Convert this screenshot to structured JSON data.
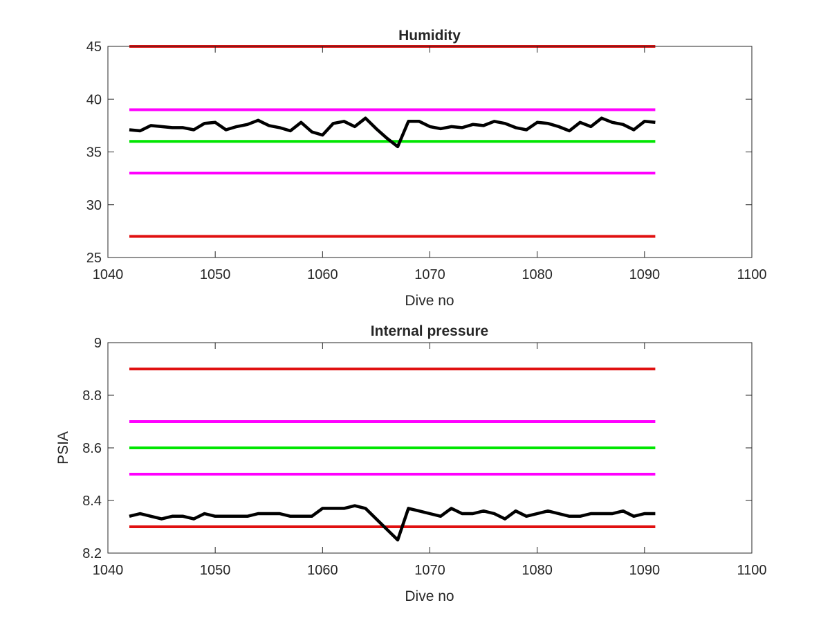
{
  "colors": {
    "limit_red": "#e01010",
    "limit_magenta": "#ff00ff",
    "target_green": "#00e600",
    "measured_black": "#000000",
    "axes": "#262626"
  },
  "chart_data": [
    {
      "type": "line",
      "title": "Humidity",
      "xlabel": "Dive no",
      "ylabel": "",
      "xlim": [
        1040,
        1100
      ],
      "ylim": [
        25,
        45
      ],
      "xticks": [
        "1040",
        "1050",
        "1060",
        "1070",
        "1080",
        "1090",
        "1100"
      ],
      "yticks": [
        "25",
        "30",
        "35",
        "40",
        "45"
      ],
      "grid": false,
      "series": [
        {
          "color": "#e01010",
          "x": [
            1042,
            1091
          ],
          "y": [
            45,
            45
          ]
        },
        {
          "color": "#ff00ff",
          "x": [
            1042,
            1091
          ],
          "y": [
            39,
            39
          ]
        },
        {
          "color": "#00e600",
          "x": [
            1042,
            1091
          ],
          "y": [
            36,
            36
          ]
        },
        {
          "color": "#ff00ff",
          "x": [
            1042,
            1091
          ],
          "y": [
            33,
            33
          ]
        },
        {
          "color": "#e01010",
          "x": [
            1042,
            1091
          ],
          "y": [
            27,
            27
          ]
        },
        {
          "color": "#000000",
          "x": [
            1042,
            1043,
            1044,
            1045,
            1046,
            1047,
            1048,
            1049,
            1050,
            1051,
            1052,
            1053,
            1054,
            1055,
            1056,
            1057,
            1058,
            1059,
            1060,
            1061,
            1062,
            1063,
            1064,
            1065,
            1066,
            1067,
            1068,
            1069,
            1070,
            1071,
            1072,
            1073,
            1074,
            1075,
            1076,
            1077,
            1078,
            1079,
            1080,
            1081,
            1082,
            1083,
            1084,
            1085,
            1086,
            1087,
            1088,
            1089,
            1090,
            1091
          ],
          "y": [
            37.1,
            37.0,
            37.5,
            37.4,
            37.3,
            37.3,
            37.1,
            37.7,
            37.8,
            37.1,
            37.4,
            37.6,
            38.0,
            37.5,
            37.3,
            37.0,
            37.8,
            36.9,
            36.6,
            37.7,
            37.9,
            37.4,
            38.2,
            37.2,
            36.3,
            35.5,
            37.9,
            37.9,
            37.4,
            37.2,
            37.4,
            37.3,
            37.6,
            37.5,
            37.9,
            37.7,
            37.3,
            37.1,
            37.8,
            37.7,
            37.4,
            37.0,
            37.8,
            37.4,
            38.2,
            37.8,
            37.6,
            37.1,
            37.9,
            37.8
          ]
        }
      ]
    },
    {
      "type": "line",
      "title": "Internal pressure",
      "xlabel": "Dive no",
      "ylabel": "PSIA",
      "xlim": [
        1040,
        1100
      ],
      "ylim": [
        8.2,
        9
      ],
      "xticks": [
        "1040",
        "1050",
        "1060",
        "1070",
        "1080",
        "1090",
        "1100"
      ],
      "yticks": [
        "8.2",
        "8.4",
        "8.6",
        "8.8",
        "9"
      ],
      "grid": false,
      "series": [
        {
          "color": "#e01010",
          "x": [
            1042,
            1091
          ],
          "y": [
            8.9,
            8.9
          ]
        },
        {
          "color": "#ff00ff",
          "x": [
            1042,
            1091
          ],
          "y": [
            8.7,
            8.7
          ]
        },
        {
          "color": "#00e600",
          "x": [
            1042,
            1091
          ],
          "y": [
            8.6,
            8.6
          ]
        },
        {
          "color": "#ff00ff",
          "x": [
            1042,
            1091
          ],
          "y": [
            8.5,
            8.5
          ]
        },
        {
          "color": "#e01010",
          "x": [
            1042,
            1091
          ],
          "y": [
            8.3,
            8.3
          ]
        },
        {
          "color": "#000000",
          "x": [
            1042,
            1043,
            1044,
            1045,
            1046,
            1047,
            1048,
            1049,
            1050,
            1051,
            1052,
            1053,
            1054,
            1055,
            1056,
            1057,
            1058,
            1059,
            1060,
            1061,
            1062,
            1063,
            1064,
            1065,
            1066,
            1067,
            1068,
            1069,
            1070,
            1071,
            1072,
            1073,
            1074,
            1075,
            1076,
            1077,
            1078,
            1079,
            1080,
            1081,
            1082,
            1083,
            1084,
            1085,
            1086,
            1087,
            1088,
            1089,
            1090,
            1091
          ],
          "y": [
            8.34,
            8.35,
            8.34,
            8.33,
            8.34,
            8.34,
            8.33,
            8.35,
            8.34,
            8.34,
            8.34,
            8.34,
            8.35,
            8.35,
            8.35,
            8.34,
            8.34,
            8.34,
            8.37,
            8.37,
            8.37,
            8.38,
            8.37,
            8.33,
            8.29,
            8.25,
            8.37,
            8.36,
            8.35,
            8.34,
            8.37,
            8.35,
            8.35,
            8.36,
            8.35,
            8.33,
            8.36,
            8.34,
            8.35,
            8.36,
            8.35,
            8.34,
            8.34,
            8.35,
            8.35,
            8.35,
            8.36,
            8.34,
            8.35,
            8.35
          ]
        }
      ]
    }
  ]
}
